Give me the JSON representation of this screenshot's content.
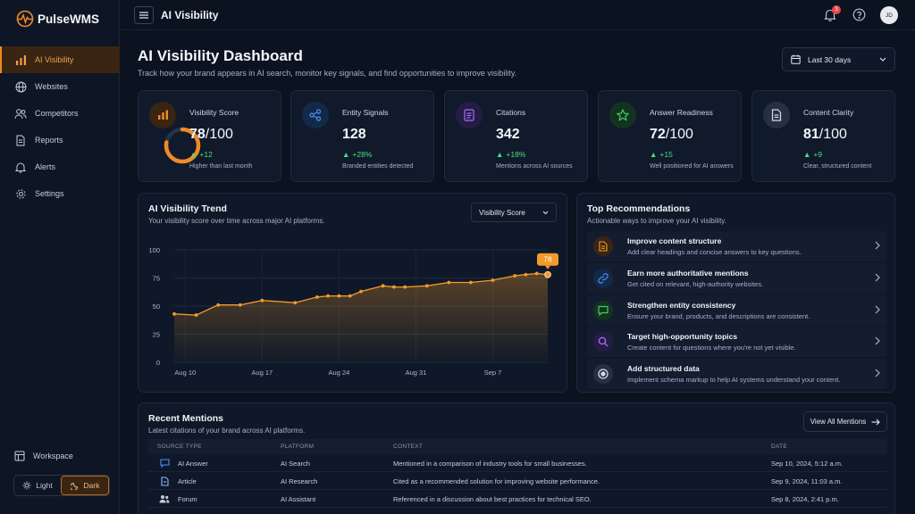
{
  "app": {
    "name": "PulseWMS"
  },
  "sidebar": {
    "items": [
      {
        "label": "AI Visibility",
        "icon": "chart-bars-icon",
        "active": true
      },
      {
        "label": "Websites",
        "icon": "globe-icon"
      },
      {
        "label": "Competitors",
        "icon": "users-icon"
      },
      {
        "label": "Reports",
        "icon": "document-icon"
      },
      {
        "label": "Alerts",
        "icon": "bell-icon"
      },
      {
        "label": "Settings",
        "icon": "gear-icon"
      }
    ],
    "workspace": "Workspace",
    "theme": {
      "light": "Light",
      "dark": "Dark",
      "selected": "Dark"
    }
  },
  "topbar": {
    "title": "AI Visibility",
    "notifications": "3",
    "avatar": "JD"
  },
  "header": {
    "title": "AI Visibility Dashboard",
    "subtitle": "Track how your brand appears in AI search, monitor key signals, and find opportunities to improve visibility.",
    "date_range": "Last 30 days"
  },
  "kpis": [
    {
      "label": "Visibility Score",
      "value": "78",
      "denom": "/100",
      "delta": "+12",
      "note": "Higher than last month",
      "icon": "chart-bars-icon",
      "progress": 0.78
    },
    {
      "label": "Entity Signals",
      "value": "128",
      "denom": "",
      "delta": "+28%",
      "note": "Branded entities detected",
      "icon": "share-nodes-icon"
    },
    {
      "label": "Citations",
      "value": "342",
      "denom": "",
      "delta": "+18%",
      "note": "Mentions across AI sources",
      "icon": "document-icon"
    },
    {
      "label": "Answer Readiness",
      "value": "72",
      "denom": "/100",
      "delta": "+15",
      "note": "Well positioned for AI answers",
      "icon": "star-icon"
    },
    {
      "label": "Content Clarity",
      "value": "81",
      "denom": "/100",
      "delta": "+9",
      "note": "Clear, structured content",
      "icon": "file-text-icon"
    }
  ],
  "trend": {
    "title": "AI Visibility Trend",
    "subtitle": "Your visibility score over time across major AI platforms.",
    "metric": "Visibility Score",
    "tooltip": "78"
  },
  "chart_data": {
    "type": "area",
    "title": "AI Visibility Trend",
    "xlabel": "",
    "ylabel": "",
    "x_ticks": [
      "Aug 10",
      "Aug 17",
      "Aug 24",
      "Aug 31",
      "Sep 7"
    ],
    "y_ticks": [
      "0",
      "25",
      "50",
      "75",
      "100"
    ],
    "ylim": [
      0,
      100
    ],
    "xlim": [
      "2024-08-09",
      "2024-09-12"
    ],
    "grid": true,
    "series": [
      {
        "x": [
          "2024-08-09",
          "2024-08-11",
          "2024-08-13",
          "2024-08-15",
          "2024-08-17",
          "2024-08-20",
          "2024-08-22",
          "2024-08-23",
          "2024-08-24",
          "2024-08-25",
          "2024-08-26",
          "2024-08-28",
          "2024-08-29",
          "2024-08-30",
          "2024-09-01",
          "2024-09-03",
          "2024-09-05",
          "2024-09-07",
          "2024-09-09",
          "2024-09-10",
          "2024-09-11",
          "2024-09-12"
        ],
        "values": [
          43,
          42,
          51,
          51,
          55,
          53,
          58,
          59,
          59,
          59,
          63,
          68,
          67,
          67,
          68,
          71,
          71,
          73,
          77,
          78,
          79,
          78
        ],
        "color": "#f39a2b"
      }
    ]
  },
  "recommendations": {
    "title": "Top Recommendations",
    "subtitle": "Actionable ways to improve your AI visibility.",
    "items": [
      {
        "title": "Improve content structure",
        "desc": "Add clear headings and concise answers to key questions.",
        "icon": "document-icon",
        "color": "#f39a2b"
      },
      {
        "title": "Earn more authoritative mentions",
        "desc": "Get cited on relevant, high-authority websites.",
        "icon": "link-icon",
        "color": "#4f8ff7"
      },
      {
        "title": "Strengthen entity consistency",
        "desc": "Ensure your brand, products, and descriptions are consistent.",
        "icon": "message-icon",
        "color": "#3fca6b"
      },
      {
        "title": "Target high-opportunity topics",
        "desc": "Create content for questions where you're not yet visible.",
        "icon": "search-icon",
        "color": "#a66ef6"
      },
      {
        "title": "Add structured data",
        "desc": "Implement schema markup to help AI systems understand your content.",
        "icon": "target-icon",
        "color": "#c5ccd9"
      }
    ]
  },
  "mentions": {
    "title": "Recent Mentions",
    "subtitle": "Latest citations of your brand across AI platforms.",
    "view_all": "View All Mentions",
    "columns": [
      "SOURCE TYPE",
      "PLATFORM",
      "CONTEXT",
      "DATE"
    ],
    "rows": [
      {
        "type": "AI Answer",
        "icon": "chat-icon",
        "platform": "AI Search",
        "context": "Mentioned in a comparison of industry tools for small businesses.",
        "date": "Sep 10, 2024, 5:12 a.m."
      },
      {
        "type": "Article",
        "icon": "document-icon",
        "platform": "AI Research",
        "context": "Cited as a recommended solution for improving website performance.",
        "date": "Sep 9, 2024, 11:03 a.m."
      },
      {
        "type": "Forum",
        "icon": "users-icon",
        "platform": "AI Assistant",
        "context": "Referenced in a discussion about best practices for technical SEO.",
        "date": "Sep 8, 2024, 2:41 p.m."
      }
    ]
  }
}
